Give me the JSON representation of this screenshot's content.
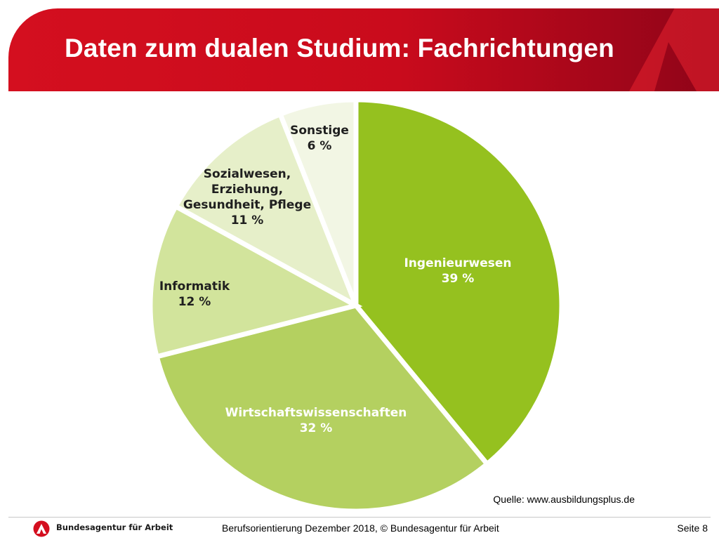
{
  "header": {
    "title": "Daten zum dualen Studium: Fachrichtungen"
  },
  "chart_data": {
    "type": "pie",
    "slices": [
      {
        "label_lines": [
          "Ingenieurwesen"
        ],
        "value": 39,
        "value_label": "39 %",
        "color": "#95c11f",
        "text_color": "#ffffff"
      },
      {
        "label_lines": [
          "Wirtschaftswissenschaften"
        ],
        "value": 32,
        "value_label": "32 %",
        "color": "#b4d060",
        "text_color": "#ffffff"
      },
      {
        "label_lines": [
          "Informatik"
        ],
        "value": 12,
        "value_label": "12 %",
        "color": "#d2e49c",
        "text_color": "#1f1f1f"
      },
      {
        "label_lines": [
          "Sozialwesen,",
          "Erziehung,",
          "Gesundheit, Pflege"
        ],
        "value": 11,
        "value_label": "11 %",
        "color": "#e6efc9",
        "text_color": "#1f1f1f"
      },
      {
        "label_lines": [
          "Sonstige"
        ],
        "value": 6,
        "value_label": "6 %",
        "color": "#f2f6e4",
        "text_color": "#1f1f1f"
      }
    ]
  },
  "source": "Quelle: www.ausbildungsplus.de",
  "footer": {
    "org_name": "Bundesagentur für Arbeit",
    "text": "Berufsorientierung Dezember 2018, © Bundesagentur für Arbeit",
    "page": "Seite 8"
  },
  "colors": {
    "brand_red": "#d40f1f",
    "brand_dark_red": "#8e0418"
  }
}
